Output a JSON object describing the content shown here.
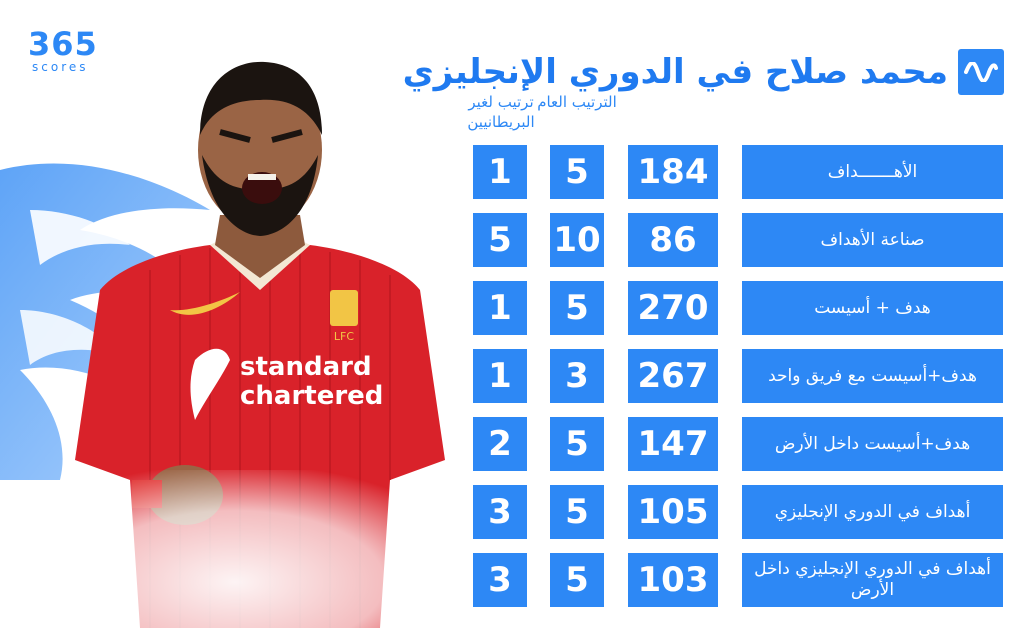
{
  "brand": {
    "logo_number": "365",
    "logo_sub": "scores"
  },
  "header": {
    "title": "محمد صلاح في الدوري الإنجليزي"
  },
  "columns": {
    "rank": "الترتيب العام",
    "rank_non_british": "ترتيب لغير البريطانيين"
  },
  "colors": {
    "accent": "#2d88f5",
    "title": "#1f7af0",
    "shirt": "#d9222a"
  },
  "rows": [
    {
      "label": "الأهـــــــداف",
      "total": "184",
      "rank": "5",
      "rank_non_british": "1"
    },
    {
      "label": "صناعة الأهداف",
      "total": "86",
      "rank": "10",
      "rank_non_british": "5"
    },
    {
      "label": "هدف + أسيست",
      "total": "270",
      "rank": "5",
      "rank_non_british": "1"
    },
    {
      "label": "هدف+أسيست مع فريق واحد",
      "total": "267",
      "rank": "3",
      "rank_non_british": "1"
    },
    {
      "label": "هدف+أسيست داخل الأرض",
      "total": "147",
      "rank": "5",
      "rank_non_british": "2"
    },
    {
      "label": "أهداف في الدوري الإنجليزي",
      "total": "105",
      "rank": "5",
      "rank_non_british": "3"
    },
    {
      "label": "أهداف في الدوري الإنجليزي داخل الأرض",
      "total": "103",
      "rank": "5",
      "rank_non_british": "3"
    }
  ],
  "player": {
    "sponsor_line1": "standard",
    "sponsor_line2": "chartered",
    "crest": "LFC"
  }
}
